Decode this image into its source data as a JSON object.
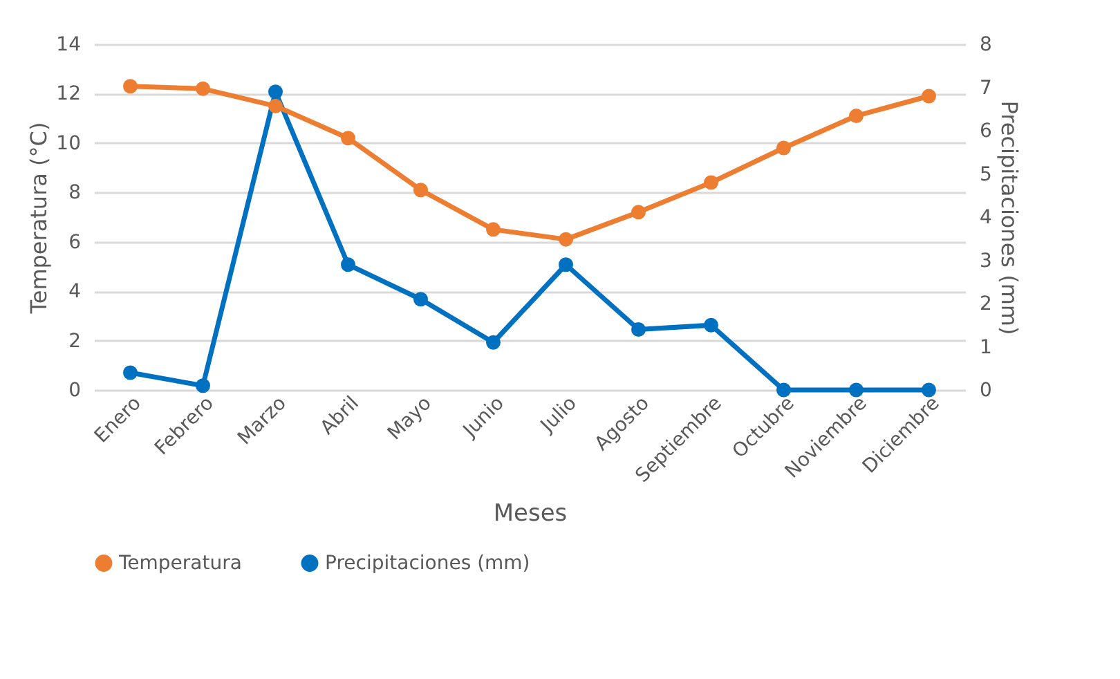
{
  "chart_data": {
    "type": "line",
    "xlabel": "Meses",
    "ylabel": "Temperatura (°C)",
    "y2label": "Precipitaciones (mm)",
    "categories": [
      "Enero",
      "Febrero",
      "Marzo",
      "Abril",
      "Mayo",
      "Junio",
      "Julio",
      "Agosto",
      "Septiembre",
      "Octubre",
      "Noviembre",
      "Diciembre"
    ],
    "series": [
      {
        "name": "Temperatura",
        "color": "#ed7d31",
        "values": [
          12.3,
          12.2,
          11.5,
          10.2,
          8.1,
          6.5,
          6.1,
          7.2,
          8.4,
          9.8,
          11.1,
          11.9
        ]
      },
      {
        "name": "Precipitaciones (mm)",
        "color": "#0070c0",
        "axis": "y2",
        "values": [
          0.4,
          0.1,
          6.9,
          2.9,
          2.1,
          1.1,
          2.9,
          1.4,
          1.5,
          0,
          0,
          0
        ]
      }
    ],
    "ylim": [
      0,
      14
    ],
    "yticks": [
      0,
      2,
      4,
      6,
      8,
      10,
      12,
      14
    ],
    "y2lim": [
      0,
      8
    ],
    "y2ticks": [
      0,
      1,
      2,
      3,
      4,
      5,
      6,
      7,
      8
    ],
    "grid": "y",
    "legend": "bottom",
    "marker": "circle",
    "line_style": "solid"
  }
}
